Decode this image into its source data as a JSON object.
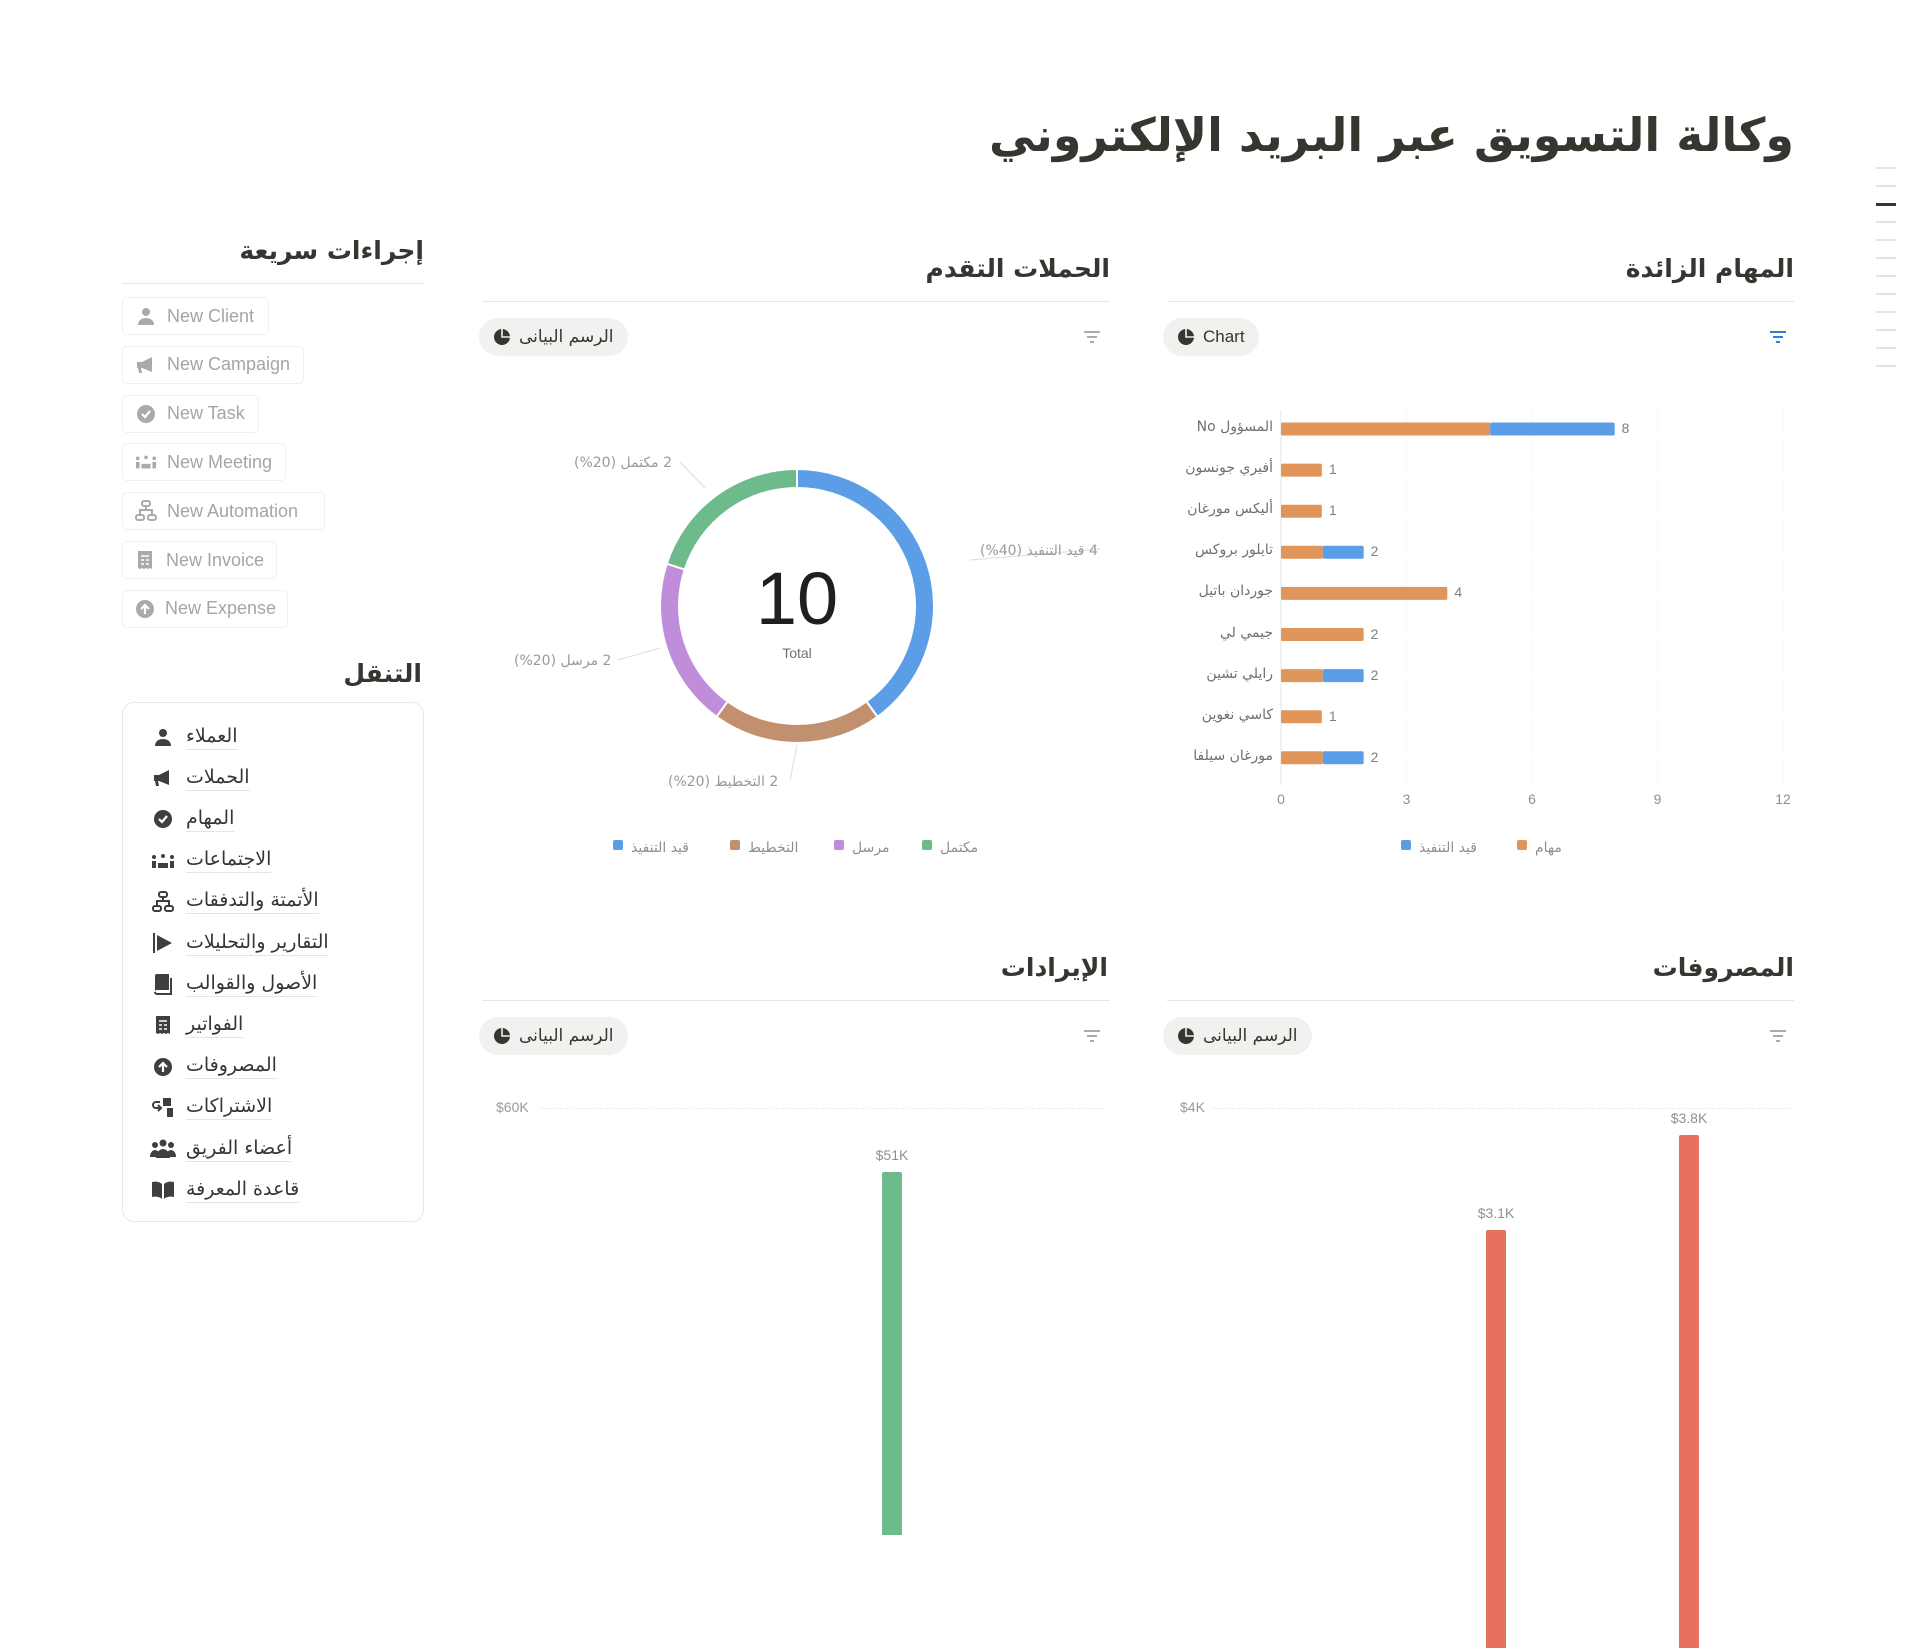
{
  "title": "وكالة التسويق عبر البريد الإلكتروني",
  "quick_actions": {
    "heading": "إجراءات سريعة",
    "items": [
      {
        "label": "New Client",
        "icon": "person-icon"
      },
      {
        "label": "New Campaign",
        "icon": "megaphone-icon"
      },
      {
        "label": "New Task",
        "icon": "check-circle-icon"
      },
      {
        "label": "New Meeting",
        "icon": "meeting-icon"
      },
      {
        "label": "New Automation",
        "icon": "flow-icon"
      },
      {
        "label": "New Invoice",
        "icon": "receipt-icon"
      },
      {
        "label": "New Expense",
        "icon": "arrow-up-circle-icon"
      }
    ]
  },
  "navigation": {
    "heading": "التنقل",
    "items": [
      {
        "label": "العملاء",
        "icon": "person-icon"
      },
      {
        "label": "الحملات",
        "icon": "megaphone-icon"
      },
      {
        "label": "المهام",
        "icon": "check-circle-icon"
      },
      {
        "label": "الاجتماعات",
        "icon": "meeting-icon"
      },
      {
        "label": "الأتمتة والتدفقات",
        "icon": "flow-icon"
      },
      {
        "label": "التقارير والتحليلات",
        "icon": "flag-icon"
      },
      {
        "label": "الأصول والقوالب",
        "icon": "book-icon"
      },
      {
        "label": "الفواتير",
        "icon": "receipt-icon"
      },
      {
        "label": "المصروفات",
        "icon": "arrow-up-circle-icon"
      },
      {
        "label": "الاشتراكات",
        "icon": "subscription-icon"
      },
      {
        "label": "أعضاء الفريق",
        "icon": "team-icon"
      },
      {
        "label": "قاعدة المعرفة",
        "icon": "open-book-icon"
      }
    ]
  },
  "sections": {
    "tasks": {
      "heading": "المهام الزائدة",
      "view_label": "Chart",
      "filter_active": true
    },
    "campaigns": {
      "heading": "الحملات التقدم",
      "view_label": "الرسم البيانى"
    },
    "revenue": {
      "heading": "الإيرادات",
      "view_label": "الرسم البيانى"
    },
    "expenses": {
      "heading": "المصروفات",
      "view_label": "الرسم البيانى"
    }
  },
  "colors": {
    "blue": "#5b9de6",
    "orange": "#e0955a",
    "brown": "#c0906f",
    "purple": "#c08ddb",
    "green": "#6dba8b",
    "red": "#e8705f",
    "filter_active": "#2383e2"
  },
  "chart_data": [
    {
      "type": "bar",
      "orientation": "horizontal",
      "stacked": true,
      "categories": [
        "المسؤول No",
        "أفيري جونسون",
        "أليكس مورغان",
        "تايلور بروكس",
        "جوردان باتيل",
        "جيمي لي",
        "رايلي تشين",
        "كاسي نغوين",
        "مورغان سيلفا"
      ],
      "series": [
        {
          "name": "مهام",
          "color": "#e0955a",
          "values": [
            5,
            1,
            1,
            1,
            4,
            2,
            1,
            1,
            1
          ]
        },
        {
          "name": "قيد التنفيذ",
          "color": "#5b9de6",
          "values": [
            3,
            0,
            0,
            1,
            0,
            0,
            1,
            0,
            1
          ]
        }
      ],
      "totals": [
        "8",
        "1",
        "1",
        "2",
        "4",
        "2",
        "2",
        "1",
        "2"
      ],
      "xlim": [
        0,
        12
      ],
      "xticks": [
        "0",
        "3",
        "6",
        "9",
        "12"
      ],
      "grid": true,
      "legend": "bottom"
    },
    {
      "type": "pie",
      "donut": true,
      "center_value": "10",
      "center_label": "Total",
      "slices": [
        {
          "name": "قيد التنفيذ",
          "value": 4,
          "color": "#5b9de6",
          "label": "4 قيد التنفيذ (40%)"
        },
        {
          "name": "التخطيط",
          "value": 2,
          "color": "#c0906f",
          "label": "2 التخطيط (20%)"
        },
        {
          "name": "مرسل",
          "value": 2,
          "color": "#c08ddb",
          "label": "2 مرسل (20%)"
        },
        {
          "name": "مكتمل",
          "value": 2,
          "color": "#6dba8b",
          "label": "2 مكتمل (20%)"
        }
      ],
      "legend": "bottom"
    },
    {
      "type": "bar",
      "yticks": [
        "$60K"
      ],
      "ymax": 60000,
      "bars": [
        {
          "value": 51000,
          "label": "$51K",
          "color": "#6dba8b"
        }
      ]
    },
    {
      "type": "bar",
      "yticks": [
        "$4K"
      ],
      "ymax": 4000,
      "bars": [
        {
          "value": 3100,
          "label": "$3.1K",
          "color": "#e8705f"
        },
        {
          "value": 3800,
          "label": "$3.8K",
          "color": "#e8705f"
        }
      ]
    }
  ]
}
